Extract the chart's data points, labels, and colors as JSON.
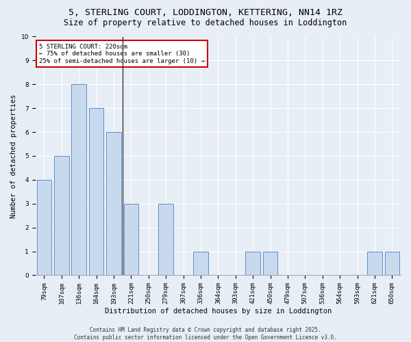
{
  "title1": "5, STERLING COURT, LODDINGTON, KETTERING, NN14 1RZ",
  "title2": "Size of property relative to detached houses in Loddington",
  "xlabel": "Distribution of detached houses by size in Loddington",
  "ylabel": "Number of detached properties",
  "categories": [
    "79sqm",
    "107sqm",
    "136sqm",
    "164sqm",
    "193sqm",
    "221sqm",
    "250sqm",
    "279sqm",
    "307sqm",
    "336sqm",
    "364sqm",
    "393sqm",
    "421sqm",
    "450sqm",
    "479sqm",
    "507sqm",
    "536sqm",
    "564sqm",
    "593sqm",
    "621sqm",
    "650sqm"
  ],
  "values": [
    4,
    5,
    8,
    7,
    6,
    3,
    0,
    3,
    0,
    1,
    0,
    0,
    1,
    1,
    0,
    0,
    0,
    0,
    0,
    1,
    1
  ],
  "bar_color": "#c9d9ed",
  "bar_edge_color": "#5b8fc9",
  "highlight_index": 5,
  "highlight_line_color": "#333333",
  "annotation_text": "5 STERLING COURT: 220sqm\n← 75% of detached houses are smaller (30)\n25% of semi-detached houses are larger (10) →",
  "annotation_box_facecolor": "#ffffff",
  "annotation_box_edgecolor": "#cc0000",
  "background_color": "#e8eef5",
  "plot_bg_color": "#e8eef5",
  "grid_color": "#ffffff",
  "ylim": [
    0,
    10
  ],
  "yticks": [
    0,
    1,
    2,
    3,
    4,
    5,
    6,
    7,
    8,
    9,
    10
  ],
  "footer_text": "Contains HM Land Registry data © Crown copyright and database right 2025.\nContains public sector information licensed under the Open Government Licence v3.0.",
  "title1_fontsize": 9.5,
  "title2_fontsize": 8.5,
  "xlabel_fontsize": 7.5,
  "ylabel_fontsize": 7.5,
  "tick_fontsize": 6.5,
  "annot_fontsize": 6.5,
  "footer_fontsize": 5.5
}
